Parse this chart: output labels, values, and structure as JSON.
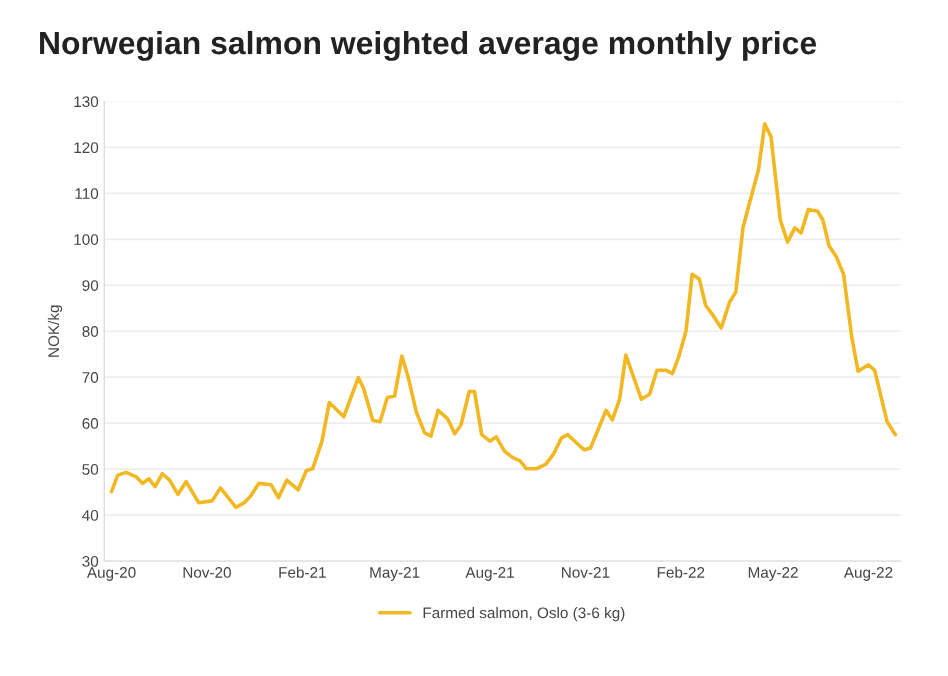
{
  "chart_data": {
    "type": "line",
    "title": "Norwegian salmon weighted average monthly price",
    "ylabel": "NOK/kg",
    "xlim": [
      "2020-07-25",
      "2022-09-01"
    ],
    "xticks": [
      {
        "value": "2020-08-01",
        "label": "Aug-20"
      },
      {
        "value": "2020-11-01",
        "label": "Nov-20"
      },
      {
        "value": "2021-02-01",
        "label": "Feb-21"
      },
      {
        "value": "2021-05-01",
        "label": "May-21"
      },
      {
        "value": "2021-08-01",
        "label": "Aug-21"
      },
      {
        "value": "2021-11-01",
        "label": "Nov-21"
      },
      {
        "value": "2022-02-01",
        "label": "Feb-22"
      },
      {
        "value": "2022-05-01",
        "label": "May-22"
      },
      {
        "value": "2022-08-01",
        "label": "Aug-22"
      }
    ],
    "ylim": [
      30,
      130
    ],
    "yticks": [
      30,
      40,
      50,
      60,
      70,
      80,
      90,
      100,
      110,
      120,
      130
    ],
    "grid": "y",
    "legend": "bottom",
    "marker": "none",
    "line_style": "solid",
    "x": [
      "2020-08-01",
      "2020-08-07",
      "2020-08-15",
      "2020-08-25",
      "2020-08-31",
      "2020-09-06",
      "2020-09-12",
      "2020-09-19",
      "2020-09-26",
      "2020-10-04",
      "2020-10-12",
      "2020-10-24",
      "2020-11-06",
      "2020-11-14",
      "2020-11-29",
      "2020-12-07",
      "2020-12-13",
      "2020-12-21",
      "2021-01-02",
      "2021-01-09",
      "2021-01-17",
      "2021-01-28",
      "2021-02-05",
      "2021-02-11",
      "2021-02-20",
      "2021-02-27",
      "2021-03-13",
      "2021-03-27",
      "2021-04-01",
      "2021-04-10",
      "2021-04-17",
      "2021-04-24",
      "2021-05-01",
      "2021-05-08",
      "2021-05-14",
      "2021-05-22",
      "2021-05-30",
      "2021-06-05",
      "2021-06-12",
      "2021-06-21",
      "2021-06-28",
      "2021-07-04",
      "2021-07-12",
      "2021-07-17",
      "2021-07-24",
      "2021-08-01",
      "2021-08-07",
      "2021-08-15",
      "2021-08-23",
      "2021-08-30",
      "2021-09-05",
      "2021-09-15",
      "2021-09-24",
      "2021-10-01",
      "2021-10-09",
      "2021-10-15",
      "2021-10-23",
      "2021-10-31",
      "2021-11-06",
      "2021-11-21",
      "2021-11-27",
      "2021-12-04",
      "2021-12-10",
      "2021-12-25",
      "2022-01-02",
      "2022-01-09",
      "2022-01-18",
      "2022-01-24",
      "2022-01-30",
      "2022-02-06",
      "2022-02-12",
      "2022-02-19",
      "2022-02-25",
      "2022-03-04",
      "2022-03-12",
      "2022-03-20",
      "2022-03-26",
      "2022-04-02",
      "2022-04-07",
      "2022-04-17",
      "2022-04-23",
      "2022-04-29",
      "2022-05-08",
      "2022-05-15",
      "2022-05-22",
      "2022-05-28",
      "2022-06-04",
      "2022-06-13",
      "2022-06-18",
      "2022-06-24",
      "2022-07-01",
      "2022-07-08",
      "2022-07-16",
      "2022-07-22",
      "2022-08-01",
      "2022-08-07",
      "2022-08-19",
      "2022-08-27"
    ],
    "series": [
      {
        "name": "Farmed salmon, Oslo (3-6 kg)",
        "color": "#f2b824",
        "values": [
          45.1,
          48.7,
          49.3,
          48.3,
          46.9,
          47.9,
          46.2,
          49.0,
          47.6,
          44.5,
          47.3,
          42.7,
          43.1,
          45.9,
          41.7,
          42.7,
          44.1,
          46.9,
          46.6,
          43.8,
          47.6,
          45.5,
          49.7,
          50.1,
          56.1,
          64.5,
          61.4,
          69.9,
          67.6,
          60.6,
          60.3,
          65.6,
          65.9,
          74.6,
          70.1,
          62.4,
          57.9,
          57.2,
          62.8,
          61.0,
          57.7,
          59.6,
          66.9,
          66.9,
          57.5,
          56.1,
          57.0,
          53.9,
          52.5,
          51.8,
          50.1,
          50.1,
          51.1,
          53.2,
          56.8,
          57.5,
          55.8,
          54.2,
          54.6,
          62.8,
          60.7,
          65.2,
          74.8,
          65.2,
          66.3,
          71.5,
          71.5,
          70.8,
          74.4,
          80.0,
          92.4,
          91.3,
          85.6,
          83.5,
          80.7,
          86.3,
          88.5,
          102.5,
          106.8,
          115.2,
          125.1,
          122.3,
          104.2,
          99.4,
          102.5,
          101.4,
          106.5,
          106.1,
          104.2,
          98.6,
          96.2,
          92.4,
          78.6,
          71.3,
          72.7,
          71.5,
          60.3,
          57.5
        ]
      }
    ]
  }
}
